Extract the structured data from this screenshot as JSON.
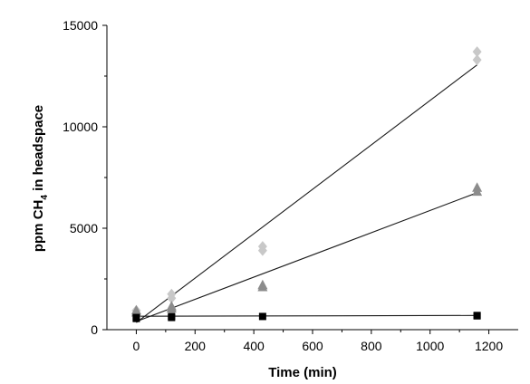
{
  "chart_data": {
    "type": "scatter",
    "title": "",
    "xlabel": "Time (min)",
    "ylabel": {
      "main": "ppm CH",
      "subscript": "4",
      "rest": " in headspace"
    },
    "xlim": [
      -100,
      1300
    ],
    "ylim": [
      0,
      15000
    ],
    "xticks": [
      0,
      200,
      400,
      600,
      800,
      1000,
      1200
    ],
    "yticks": [
      0,
      5000,
      10000,
      15000
    ],
    "xtick_labels": [
      "0",
      "200",
      "400",
      "600",
      "800",
      "1000",
      "1200"
    ],
    "ytick_labels": [
      "0",
      "5000",
      "10000",
      "15000"
    ],
    "grid": false,
    "legend": "none",
    "series": [
      {
        "marker": "diamond",
        "color": "#c8c8c8",
        "x": [
          0,
          0,
          120,
          120,
          430,
          430,
          1160,
          1160
        ],
        "y": [
          800,
          950,
          1550,
          1750,
          3900,
          4100,
          13300,
          13700
        ],
        "fit": {
          "x": [
            0,
            1160
          ],
          "y": [
            350,
            13050
          ]
        }
      },
      {
        "marker": "triangle",
        "color": "#8c8c8c",
        "x": [
          0,
          0,
          120,
          120,
          430,
          430,
          1160,
          1160
        ],
        "y": [
          850,
          950,
          1050,
          1150,
          2100,
          2200,
          6800,
          7000
        ],
        "fit": {
          "x": [
            0,
            1160
          ],
          "y": [
            400,
            6750
          ]
        }
      },
      {
        "marker": "square",
        "color": "#000000",
        "x": [
          0,
          0,
          120,
          120,
          430,
          1160,
          1160
        ],
        "y": [
          550,
          600,
          600,
          650,
          650,
          680,
          700
        ],
        "fit": {
          "x": [
            0,
            1160
          ],
          "y": [
            660,
            700
          ]
        }
      }
    ]
  }
}
